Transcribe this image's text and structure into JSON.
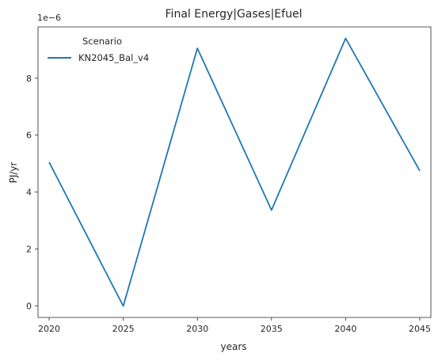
{
  "chart_data": {
    "type": "line",
    "title": "Final Energy|Gases|Efuel",
    "xlabel": "years",
    "ylabel": "PJ/yr",
    "y_offset_text": "1e−6",
    "x": [
      2020,
      2025,
      2030,
      2035,
      2040,
      2045
    ],
    "x_ticks": [
      "2020",
      "2025",
      "2030",
      "2035",
      "2040",
      "2045"
    ],
    "y_ticks": [
      "0",
      "2",
      "4",
      "6",
      "8"
    ],
    "y_tick_values": [
      0,
      2,
      4,
      6,
      8
    ],
    "xlim": [
      2019.25,
      2045.75
    ],
    "ylim": [
      -0.4,
      9.8
    ],
    "y_scale": "linear (values in units of 1e-6 PJ/yr)",
    "grid": false,
    "legend": {
      "title": "Scenario",
      "placement": "top-left"
    },
    "series": [
      {
        "name": "KN2045_Bal_v4",
        "color": "#1f77b4",
        "values": [
          5.05,
          0.0,
          9.05,
          3.37,
          9.4,
          4.75
        ]
      }
    ]
  }
}
